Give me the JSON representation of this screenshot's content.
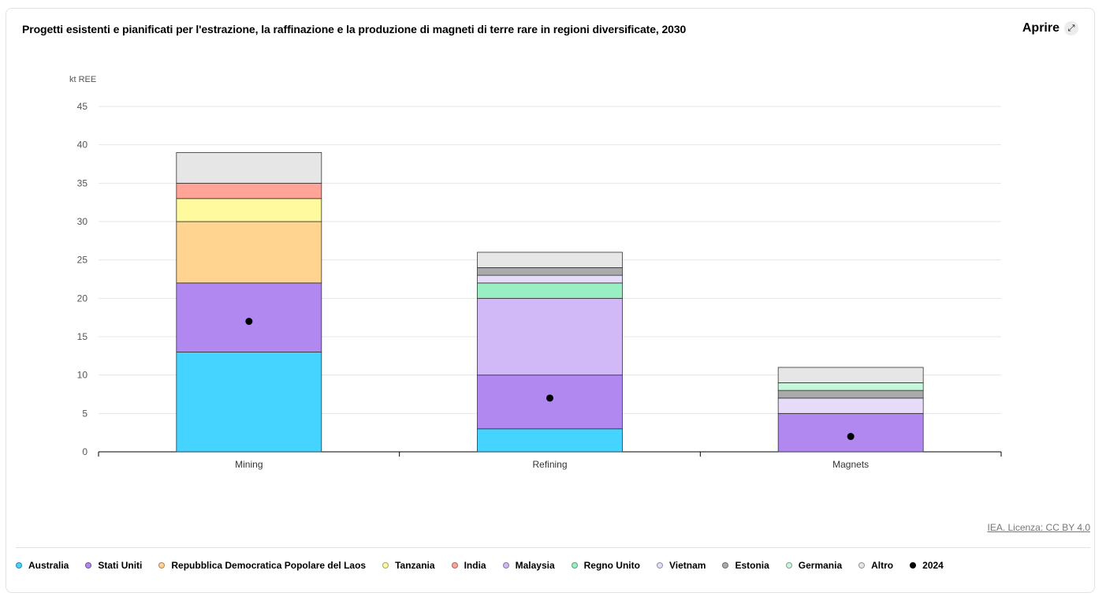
{
  "header": {
    "title": "Progetti esistenti e pianificati per l'estrazione, la raffinazione e la produzione di magneti di terre rare in regioni diversificate, 2030",
    "open_label": "Aprire",
    "open_icon": "expand-arrows-icon"
  },
  "footer": {
    "license": "IEA. Licenza: CC BY 4.0"
  },
  "chart_data": {
    "type": "bar",
    "stacked": true,
    "title": "Progetti esistenti e pianificati per l'estrazione, la raffinazione e la produzione di magneti di terre rare in regioni diversificate, 2030",
    "ylabel": "kt REE",
    "ylim": [
      0,
      45
    ],
    "yticks": [
      "0",
      "5",
      "10",
      "15",
      "20",
      "25",
      "30",
      "35",
      "40",
      "45"
    ],
    "grid": true,
    "legend_position": "bottom",
    "categories": [
      "Mining",
      "Refining",
      "Magnets"
    ],
    "series": [
      {
        "name": "Australia",
        "color": "#45d4ff",
        "values": [
          13,
          3,
          0
        ]
      },
      {
        "name": "Stati Uniti",
        "color": "#b088f0",
        "values": [
          9,
          7,
          5
        ]
      },
      {
        "name": "Repubblica Democratica Popolare del Laos",
        "color": "#ffd490",
        "values": [
          8,
          0,
          0
        ]
      },
      {
        "name": "Tanzania",
        "color": "#fffa9e",
        "values": [
          3,
          0,
          0
        ]
      },
      {
        "name": "India",
        "color": "#ffa497",
        "values": [
          2,
          0,
          0
        ]
      },
      {
        "name": "Malaysia",
        "color": "#d0b9f6",
        "values": [
          0,
          10,
          0
        ]
      },
      {
        "name": "Regno Unito",
        "color": "#9aeec4",
        "values": [
          0,
          2,
          0
        ]
      },
      {
        "name": "Vietnam",
        "color": "#e6dcf9",
        "values": [
          0,
          1,
          2
        ]
      },
      {
        "name": "Estonia",
        "color": "#aaaaaa",
        "values": [
          0,
          1,
          1
        ]
      },
      {
        "name": "Germania",
        "color": "#c8f6dd",
        "values": [
          0,
          0,
          1
        ]
      },
      {
        "name": "Altro",
        "color": "#e6e6e6",
        "values": [
          4,
          2,
          2
        ]
      }
    ],
    "markers": {
      "name": "2024",
      "color": "#000000",
      "values": [
        17,
        7,
        2
      ]
    }
  }
}
